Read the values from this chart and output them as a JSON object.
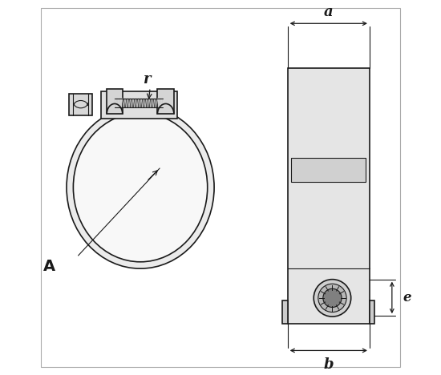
{
  "bg_color": "#ffffff",
  "line_color": "#1a1a1a",
  "label_A": "A",
  "label_r": "r",
  "label_a": "a",
  "label_b": "b",
  "label_e": "e"
}
